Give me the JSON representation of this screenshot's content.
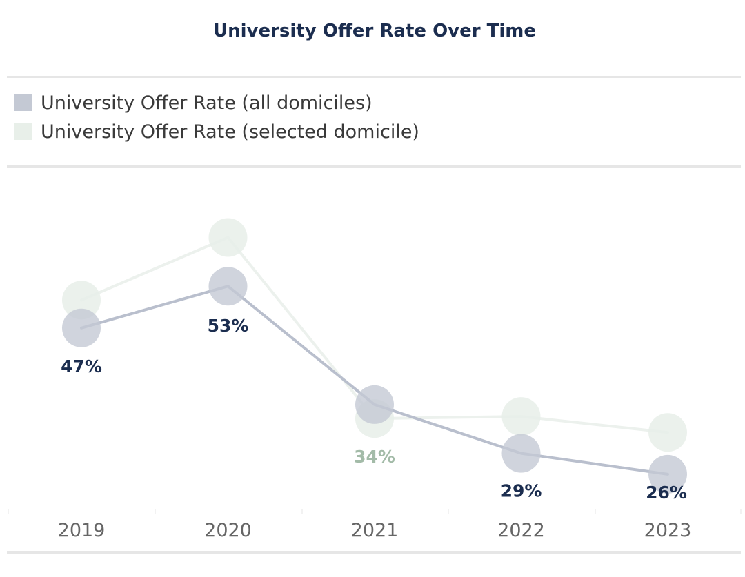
{
  "chart_data": {
    "type": "line",
    "title": "University Offer Rate Over Time",
    "categories": [
      "2019",
      "2020",
      "2021",
      "2022",
      "2023"
    ],
    "series": [
      {
        "name": "University Offer Rate (selected domicile)",
        "values": [
          51,
          60,
          34,
          34.3,
          32
        ],
        "labels": [
          "",
          "",
          "34%",
          "",
          ""
        ],
        "color": "#e8efe9",
        "label_color": "#a3bba8"
      },
      {
        "name": "University Offer Rate (all domiciles)",
        "values": [
          47,
          53,
          36,
          29,
          26
        ],
        "labels": [
          "47%",
          "53%",
          "",
          "29%",
          "26%"
        ],
        "color": "#c4c9d4",
        "label_color": "#1b2d4f"
      }
    ],
    "xlabel": "",
    "ylabel": "",
    "ylim": [
      20,
      65
    ],
    "legend": "top-left"
  }
}
